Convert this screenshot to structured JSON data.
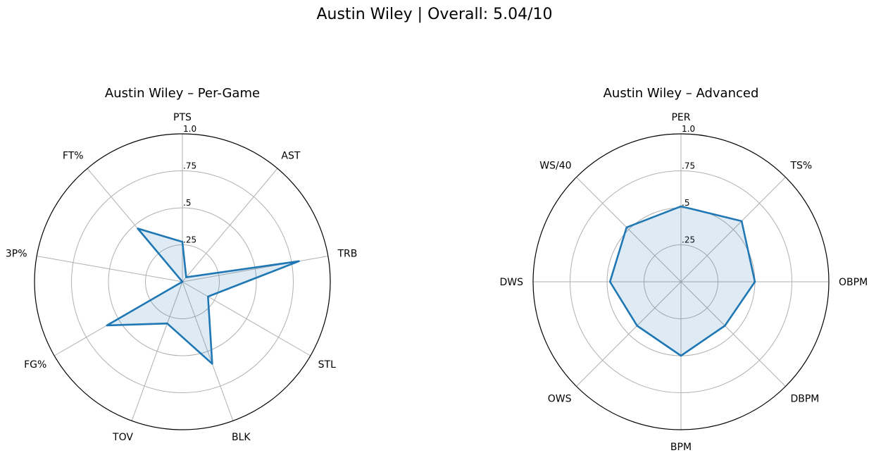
{
  "figure": {
    "suptitle": "Austin Wiley | Overall: 5.04/10"
  },
  "colors": {
    "line": "#1f77b4",
    "fill": "#1f77b4",
    "grid": "#b0b0b0",
    "outer": "#000000"
  },
  "chart_data": [
    {
      "type": "radar",
      "title": "Austin Wiley – Per-Game",
      "categories": [
        "PTS",
        "AST",
        "TRB",
        "STL",
        "BLK",
        "TOV",
        "FG%",
        "3P%",
        "FT%"
      ],
      "values": [
        0.27,
        0.04,
        0.8,
        0.2,
        0.59,
        0.3,
        0.59,
        0.0,
        0.47
      ],
      "rlim": [
        0,
        1.0
      ],
      "radial_ticks": [
        ".25",
        ".5",
        ".75",
        "1.0"
      ],
      "grid": true
    },
    {
      "type": "radar",
      "title": "Austin Wiley – Advanced",
      "categories": [
        "PER",
        "TS%",
        "OBPM",
        "DBPM",
        "BPM",
        "OWS",
        "DWS",
        "WS/40"
      ],
      "values": [
        0.51,
        0.58,
        0.5,
        0.42,
        0.5,
        0.42,
        0.48,
        0.52
      ],
      "rlim": [
        0,
        1.0
      ],
      "radial_ticks": [
        ".25",
        ".5",
        ".75",
        "1.0"
      ],
      "grid": true
    }
  ]
}
